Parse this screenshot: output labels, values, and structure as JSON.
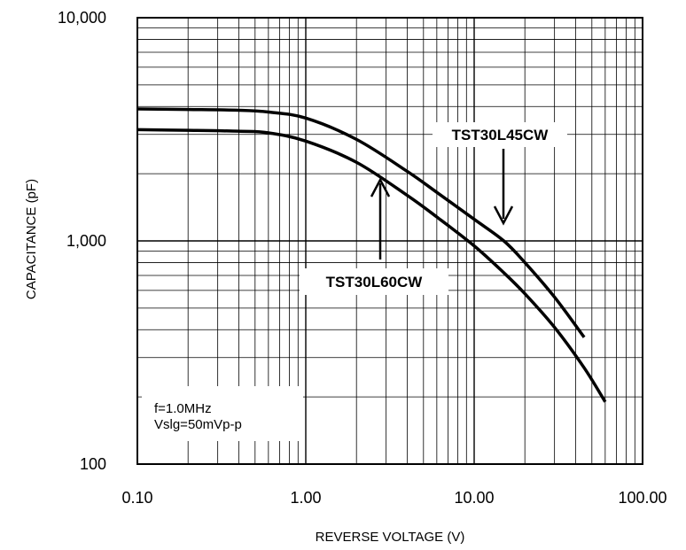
{
  "chart_data": {
    "type": "line",
    "title": "",
    "xlabel": "REVERSE VOLTAGE (V)",
    "ylabel": "CAPACITANCE (pF)",
    "x_scale": "log",
    "y_scale": "log",
    "xlim": [
      0.1,
      100
    ],
    "ylim": [
      100,
      10000
    ],
    "grid": true,
    "x_ticks": [
      "0.10",
      "1.00",
      "10.00",
      "100.00"
    ],
    "y_ticks": [
      "100",
      "1,000",
      "10,000"
    ],
    "series": [
      {
        "name": "TST30L45CW",
        "x": [
          0.1,
          0.2,
          0.4,
          0.6,
          1.0,
          2.0,
          4.0,
          6.0,
          10.0,
          15.0,
          20.0,
          30.0,
          45.0
        ],
        "y": [
          3900,
          3880,
          3850,
          3780,
          3550,
          2850,
          2050,
          1650,
          1250,
          1000,
          800,
          560,
          370
        ]
      },
      {
        "name": "TST30L60CW",
        "x": [
          0.1,
          0.2,
          0.4,
          0.6,
          1.0,
          2.0,
          4.0,
          6.0,
          10.0,
          15.0,
          20.0,
          30.0,
          45.0,
          60.0
        ],
        "y": [
          3150,
          3130,
          3100,
          3050,
          2800,
          2250,
          1600,
          1280,
          950,
          720,
          580,
          410,
          270,
          190
        ]
      }
    ],
    "annotations": {
      "series1_label": "TST30L45CW",
      "series2_label": "TST30L60CW",
      "conditions_line1": "f=1.0MHz",
      "conditions_line2": "Vslg=50mVp-p"
    }
  }
}
